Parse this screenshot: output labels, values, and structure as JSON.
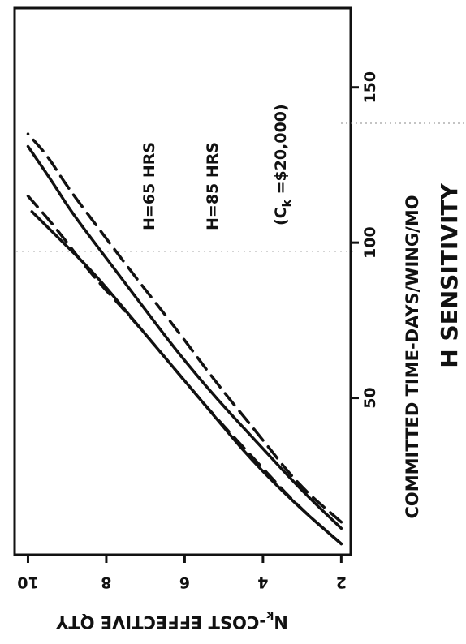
{
  "chart_data": {
    "type": "line",
    "orientation": "rotated 90 degrees counter-clockwise",
    "title": "H SENSITIVITY",
    "xlabel": "COMMITTED TIME-DAYS/WING/MO",
    "ylabel_main": "N",
    "ylabel_sub": "k",
    "ylabel_rest": "-COST EFFECTIVE QTY",
    "x_ticks": [
      "50",
      "100",
      "150"
    ],
    "y_ticks": [
      "2",
      "4",
      "6",
      "8",
      "10"
    ],
    "xlim": [
      0,
      175
    ],
    "ylim": [
      1.8,
      10.3
    ],
    "annotations": {
      "h65": "H=65 HRS",
      "h85": "H=85 HRS",
      "ck_open": "(C",
      "ck_sub": "k",
      "ck_rest": " =$20,000)"
    },
    "series": [
      {
        "name": "H=65 HRS",
        "style": "solid",
        "x": [
          3,
          15,
          30,
          45,
          60,
          75,
          90,
          100,
          110
        ],
        "y": [
          2.0,
          3.1,
          4.3,
          5.3,
          6.3,
          7.3,
          8.3,
          9.1,
          9.9
        ]
      },
      {
        "name": "H=65 HRS",
        "style": "dashed",
        "x": [
          3,
          15,
          30,
          45,
          60,
          75,
          90,
          105,
          115
        ],
        "y": [
          2.0,
          3.1,
          4.2,
          5.3,
          6.3,
          7.3,
          8.4,
          9.3,
          10.0
        ]
      },
      {
        "name": "H=85 HRS",
        "style": "solid",
        "x": [
          8,
          20,
          35,
          50,
          65,
          80,
          95,
          110,
          120,
          131
        ],
        "y": [
          2.0,
          3.0,
          4.1,
          5.2,
          6.2,
          7.1,
          8.0,
          8.9,
          9.4,
          10.0
        ]
      },
      {
        "name": "H=85 HRS",
        "style": "dashed",
        "x": [
          10,
          22,
          38,
          55,
          72,
          88,
          103,
          118,
          128,
          135
        ],
        "y": [
          2.0,
          3.1,
          4.1,
          5.2,
          6.2,
          7.2,
          8.1,
          9.0,
          9.5,
          10.0
        ]
      }
    ]
  }
}
